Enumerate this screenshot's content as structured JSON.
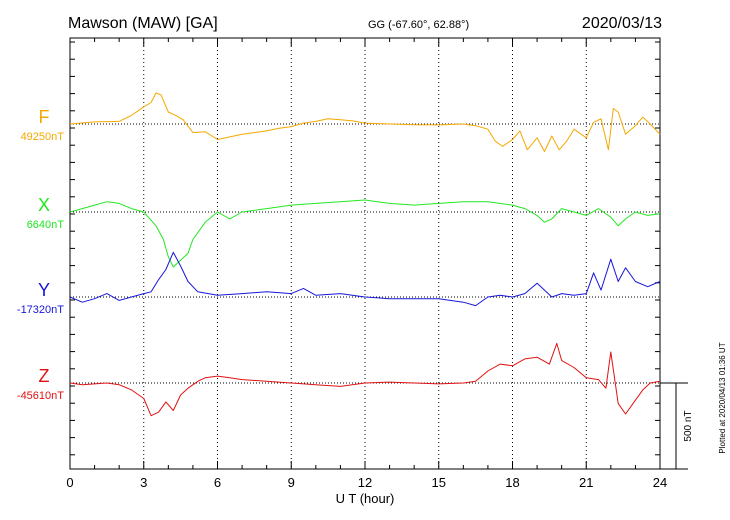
{
  "header": {
    "station": "Mawson (MAW)  [GA]",
    "coords": "GG (-67.60°,  62.88°)",
    "date": "2020/03/13"
  },
  "side_note": "Plotted at 2020/04/13 01:36 UT",
  "scale_bar": {
    "label": "500 nT",
    "value_nT": 500
  },
  "chart_data": {
    "type": "line",
    "title": "Mawson (MAW)  [GA]",
    "xlabel": "U T (hour)",
    "xlim": [
      0,
      24
    ],
    "xticks": [
      0,
      3,
      6,
      9,
      12,
      15,
      18,
      21,
      24
    ],
    "grid": true,
    "series": [
      {
        "name": "F",
        "baseline_label": "49250nT",
        "baseline_nT": 49250,
        "color": "#f5a800",
        "x": [
          0,
          1,
          2,
          2.5,
          3,
          3.3,
          3.5,
          3.7,
          4.0,
          4.3,
          4.6,
          5,
          5.5,
          6,
          6.5,
          7,
          7.5,
          8,
          8.5,
          9,
          9.5,
          10,
          10.5,
          11,
          11.5,
          12,
          13,
          14,
          15,
          16,
          16.5,
          17,
          17.3,
          17.6,
          18,
          18.3,
          18.6,
          19,
          19.3,
          19.6,
          19.9,
          20.2,
          20.5,
          21,
          21.3,
          21.6,
          21.9,
          22.1,
          22.3,
          22.6,
          23,
          23.3,
          23.6,
          24
        ],
        "values": [
          49250,
          49262,
          49265,
          49300,
          49350,
          49375,
          49430,
          49420,
          49320,
          49300,
          49275,
          49200,
          49205,
          49160,
          49175,
          49190,
          49200,
          49210,
          49225,
          49235,
          49255,
          49265,
          49280,
          49275,
          49268,
          49255,
          49250,
          49246,
          49245,
          49250,
          49240,
          49220,
          49150,
          49120,
          49160,
          49210,
          49100,
          49170,
          49090,
          49180,
          49100,
          49150,
          49220,
          49170,
          49260,
          49280,
          49100,
          49340,
          49320,
          49190,
          49240,
          49290,
          49250,
          49190
        ]
      },
      {
        "name": "X",
        "baseline_label": "6640nT",
        "baseline_nT": 6640,
        "color": "#22e822",
        "x": [
          0,
          0.5,
          1,
          1.5,
          2,
          2.5,
          3,
          3.5,
          3.8,
          4.0,
          4.2,
          4.5,
          4.8,
          5,
          5.5,
          6,
          6.5,
          7,
          8,
          9,
          10,
          11,
          12,
          13,
          14,
          15,
          16,
          17,
          18,
          18.5,
          19,
          19.3,
          19.6,
          20,
          20.5,
          21,
          21.5,
          22,
          22.3,
          22.6,
          23,
          23.5,
          24
        ],
        "values": [
          6640,
          6660,
          6680,
          6700,
          6690,
          6660,
          6640,
          6560,
          6480,
          6380,
          6320,
          6360,
          6400,
          6480,
          6580,
          6640,
          6600,
          6640,
          6660,
          6680,
          6690,
          6700,
          6710,
          6690,
          6680,
          6690,
          6700,
          6700,
          6680,
          6660,
          6620,
          6580,
          6600,
          6660,
          6640,
          6620,
          6660,
          6610,
          6560,
          6600,
          6640,
          6620,
          6630
        ]
      },
      {
        "name": "Y",
        "baseline_label": "-17320nT",
        "baseline_nT": -17320,
        "color": "#1616d8",
        "x": [
          0,
          0.5,
          1,
          1.5,
          2,
          2.5,
          3,
          3.3,
          3.6,
          3.9,
          4.2,
          4.5,
          4.8,
          5.2,
          6,
          7,
          8,
          9,
          9.5,
          10,
          11,
          12,
          13,
          14,
          15,
          16,
          16.5,
          17,
          17.5,
          18,
          18.5,
          19,
          19.3,
          19.6,
          20,
          20.5,
          21,
          21.3,
          21.6,
          22,
          22.3,
          22.6,
          23,
          23.5,
          24
        ],
        "values": [
          -17320,
          -17350,
          -17330,
          -17300,
          -17340,
          -17320,
          -17300,
          -17290,
          -17220,
          -17160,
          -17060,
          -17140,
          -17230,
          -17290,
          -17310,
          -17300,
          -17290,
          -17300,
          -17270,
          -17310,
          -17300,
          -17320,
          -17330,
          -17330,
          -17330,
          -17350,
          -17370,
          -17320,
          -17310,
          -17320,
          -17300,
          -17240,
          -17280,
          -17320,
          -17300,
          -17310,
          -17300,
          -17180,
          -17280,
          -17100,
          -17230,
          -17150,
          -17230,
          -17260,
          -17230
        ]
      },
      {
        "name": "Z",
        "baseline_label": "-45610nT",
        "baseline_nT": -45610,
        "color": "#e01212",
        "x": [
          0,
          0.5,
          1,
          1.5,
          2,
          2.5,
          3,
          3.3,
          3.6,
          3.9,
          4.2,
          4.5,
          4.8,
          5.2,
          5.5,
          6,
          6.5,
          7,
          8,
          9,
          10,
          11,
          12,
          13,
          14,
          15,
          16,
          16.5,
          17,
          17.5,
          18,
          18.5,
          19,
          19.5,
          19.8,
          20,
          20.5,
          21,
          21.5,
          21.8,
          22,
          22.3,
          22.6,
          23,
          23.3,
          23.6,
          24
        ],
        "values": [
          -45610,
          -45620,
          -45615,
          -45610,
          -45620,
          -45650,
          -45700,
          -45800,
          -45780,
          -45720,
          -45770,
          -45680,
          -45640,
          -45600,
          -45580,
          -45570,
          -45580,
          -45590,
          -45600,
          -45610,
          -45620,
          -45630,
          -45610,
          -45605,
          -45610,
          -45615,
          -45610,
          -45600,
          -45540,
          -45500,
          -45510,
          -45470,
          -45460,
          -45500,
          -45380,
          -45480,
          -45520,
          -45580,
          -45590,
          -45640,
          -45430,
          -45730,
          -45790,
          -45710,
          -45650,
          -45610,
          -45600
        ]
      }
    ]
  }
}
